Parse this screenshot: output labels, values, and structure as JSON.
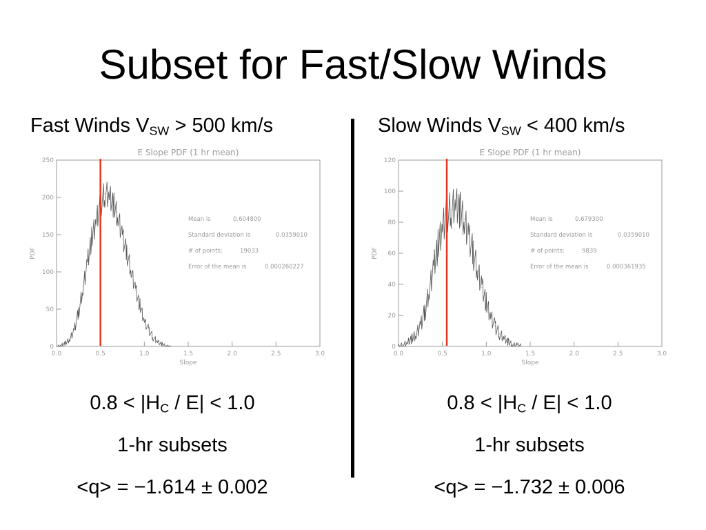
{
  "slide": {
    "title": "Subset for Fast/Slow Winds"
  },
  "left": {
    "header": {
      "pre": "Fast Winds V",
      "sub": "SW",
      "post": " > 500 km/s"
    },
    "ratio": {
      "pre": "0.8 < |H",
      "sub": "C",
      "post": " / E| < 1.0"
    },
    "subset": "1-hr subsets",
    "q": "<q> = −1.614 ± 0.002"
  },
  "right": {
    "header": {
      "pre": "Slow Winds V",
      "sub": "SW",
      "post": " < 400 km/s"
    },
    "ratio": {
      "pre": "0.8 < |H",
      "sub": "C",
      "post": " / E| < 1.0"
    },
    "subset": "1-hr subsets",
    "q": "<q> = −1.732 ± 0.006"
  },
  "colors": {
    "axis": "#9a9a9a",
    "histogram": "#555555",
    "marker": "#e8351f"
  },
  "chart_data": [
    {
      "type": "line",
      "title": "E Slope PDF (1 hr mean)",
      "xlabel": "Slope",
      "ylabel": "PDF",
      "xlim": [
        0,
        3.0
      ],
      "ylim": [
        0,
        250
      ],
      "xticks": [
        "0.0",
        "0.5",
        "1.0",
        "1.5",
        "2.0",
        "2.5",
        "3.0"
      ],
      "yticks": [
        "0",
        "50",
        "100",
        "150",
        "200",
        "250"
      ],
      "grid": false,
      "marker_x": 0.5,
      "stats": [
        {
          "label": "Mean is",
          "value": "0.604800"
        },
        {
          "label": "Standard deviation is",
          "value": "0.0359010"
        },
        {
          "label": "# of points:",
          "value": "19033"
        },
        {
          "label": "Error of the mean is",
          "value": "0.000260227"
        }
      ],
      "x": [
        0.0,
        0.05,
        0.1,
        0.15,
        0.2,
        0.25,
        0.3,
        0.35,
        0.4,
        0.45,
        0.5,
        0.55,
        0.6,
        0.65,
        0.7,
        0.75,
        0.8,
        0.85,
        0.9,
        0.95,
        1.0,
        1.05,
        1.1,
        1.15,
        1.2,
        1.25,
        1.3
      ],
      "values": [
        0,
        1,
        4,
        10,
        22,
        45,
        75,
        110,
        145,
        170,
        190,
        205,
        200,
        190,
        175,
        150,
        125,
        100,
        75,
        55,
        35,
        22,
        12,
        6,
        3,
        1,
        0
      ]
    },
    {
      "type": "line",
      "title": "E Slope PDF (1 hr mean)",
      "xlabel": "Slope",
      "ylabel": "PDF",
      "xlim": [
        0,
        3.0
      ],
      "ylim": [
        0,
        120
      ],
      "xticks": [
        "0.0",
        "0.5",
        "1.0",
        "1.5",
        "2.0",
        "2.5",
        "3.0"
      ],
      "yticks": [
        "0",
        "20",
        "40",
        "60",
        "80",
        "100",
        "120"
      ],
      "grid": false,
      "marker_x": 0.55,
      "stats": [
        {
          "label": "Mean is",
          "value": "0.679300"
        },
        {
          "label": "Standard deviation is",
          "value": "0.0359010"
        },
        {
          "label": "# of points:",
          "value": "9839"
        },
        {
          "label": "Error of the mean is",
          "value": "0.000361935"
        }
      ],
      "x": [
        0.0,
        0.05,
        0.1,
        0.15,
        0.2,
        0.25,
        0.3,
        0.35,
        0.4,
        0.45,
        0.5,
        0.55,
        0.6,
        0.65,
        0.7,
        0.75,
        0.8,
        0.85,
        0.9,
        0.95,
        1.0,
        1.05,
        1.1,
        1.15,
        1.2,
        1.25,
        1.3,
        1.35,
        1.4
      ],
      "values": [
        0,
        1,
        2,
        5,
        8,
        14,
        22,
        35,
        50,
        65,
        78,
        85,
        88,
        90,
        88,
        82,
        72,
        60,
        48,
        38,
        28,
        20,
        13,
        8,
        5,
        3,
        1,
        1,
        0
      ]
    }
  ]
}
